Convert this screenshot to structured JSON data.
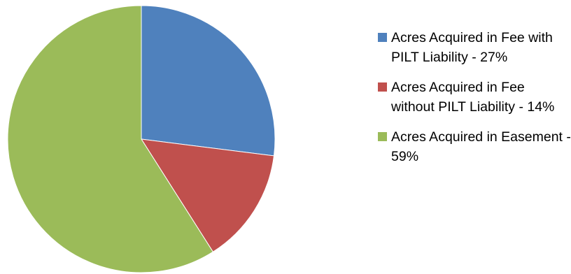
{
  "chart_data": {
    "type": "pie",
    "title": "",
    "legend_position": "right",
    "slices": [
      {
        "label": "Acres Acquired in Fee with PILT Liability - 27%",
        "value": 27,
        "color": "#4f81bd"
      },
      {
        "label": "Acres Acquired in Fee without PILT Liability - 14%",
        "value": 14,
        "color": "#c0504d"
      },
      {
        "label": "Acres Acquired in Easement - 59%",
        "value": 59,
        "color": "#9bbb59"
      }
    ]
  }
}
